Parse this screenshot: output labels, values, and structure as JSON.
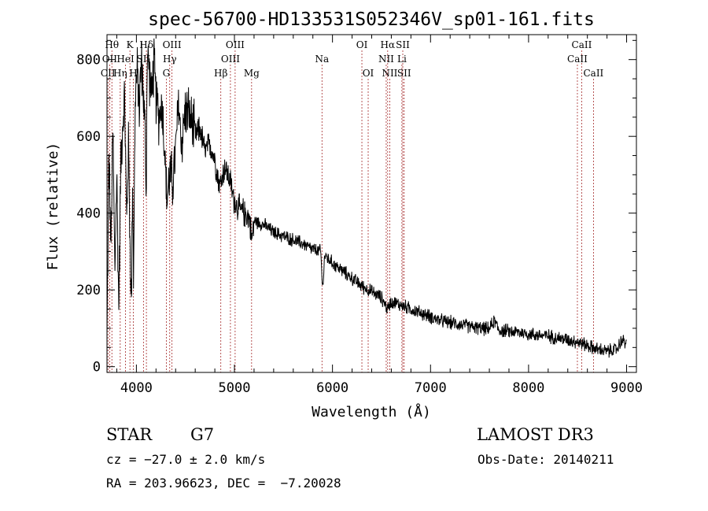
{
  "chart_data": {
    "type": "line",
    "title": "spec-56700-HD133531S052346V_sp01-161.fits",
    "xlabel": "Wavelength (Å)",
    "ylabel": "Flux (relative)",
    "xlim": [
      3700,
      9100
    ],
    "ylim": [
      -15,
      865
    ],
    "x_ticks": [
      4000,
      5000,
      6000,
      7000,
      8000,
      9000
    ],
    "x_tick_labels": [
      "4000",
      "5000",
      "6000",
      "7000",
      "8000",
      "9000"
    ],
    "y_ticks": [
      0,
      200,
      400,
      600,
      800
    ],
    "y_tick_labels": [
      "0",
      "200",
      "400",
      "600",
      "800"
    ],
    "spectrum_anchors": [
      [
        3700,
        70
      ],
      [
        3720,
        560
      ],
      [
        3740,
        300
      ],
      [
        3760,
        620
      ],
      [
        3780,
        250
      ],
      [
        3800,
        500
      ],
      [
        3820,
        150
      ],
      [
        3840,
        520
      ],
      [
        3860,
        640
      ],
      [
        3880,
        700
      ],
      [
        3900,
        380
      ],
      [
        3920,
        580
      ],
      [
        3940,
        250
      ],
      [
        3950,
        150
      ],
      [
        3960,
        520
      ],
      [
        3970,
        240
      ],
      [
        3990,
        720
      ],
      [
        4010,
        760
      ],
      [
        4030,
        680
      ],
      [
        4050,
        800
      ],
      [
        4070,
        720
      ],
      [
        4090,
        600
      ],
      [
        4100,
        430
      ],
      [
        4110,
        820
      ],
      [
        4130,
        780
      ],
      [
        4150,
        700
      ],
      [
        4180,
        790
      ],
      [
        4200,
        700
      ],
      [
        4230,
        650
      ],
      [
        4260,
        690
      ],
      [
        4290,
        560
      ],
      [
        4310,
        430
      ],
      [
        4340,
        500
      ],
      [
        4370,
        480
      ],
      [
        4400,
        560
      ],
      [
        4430,
        690
      ],
      [
        4460,
        580
      ],
      [
        4500,
        670
      ],
      [
        4550,
        650
      ],
      [
        4600,
        600
      ],
      [
        4650,
        620
      ],
      [
        4700,
        560
      ],
      [
        4750,
        580
      ],
      [
        4800,
        540
      ],
      [
        4850,
        470
      ],
      [
        4900,
        520
      ],
      [
        4950,
        490
      ],
      [
        5000,
        430
      ],
      [
        5050,
        410
      ],
      [
        5100,
        400
      ],
      [
        5150,
        390
      ],
      [
        5180,
        330
      ],
      [
        5200,
        380
      ],
      [
        5300,
        370
      ],
      [
        5400,
        350
      ],
      [
        5500,
        340
      ],
      [
        5600,
        330
      ],
      [
        5700,
        320
      ],
      [
        5800,
        305
      ],
      [
        5880,
        300
      ],
      [
        5900,
        200
      ],
      [
        5920,
        290
      ],
      [
        6000,
        270
      ],
      [
        6100,
        250
      ],
      [
        6200,
        230
      ],
      [
        6300,
        210
      ],
      [
        6400,
        195
      ],
      [
        6500,
        180
      ],
      [
        6560,
        150
      ],
      [
        6600,
        170
      ],
      [
        6700,
        160
      ],
      [
        6800,
        150
      ],
      [
        6900,
        140
      ],
      [
        7000,
        130
      ],
      [
        7100,
        120
      ],
      [
        7200,
        115
      ],
      [
        7300,
        110
      ],
      [
        7400,
        105
      ],
      [
        7500,
        100
      ],
      [
        7600,
        98
      ],
      [
        7650,
        120
      ],
      [
        7700,
        95
      ],
      [
        7800,
        92
      ],
      [
        7900,
        90
      ],
      [
        8000,
        85
      ],
      [
        8100,
        82
      ],
      [
        8200,
        80
      ],
      [
        8300,
        75
      ],
      [
        8400,
        70
      ],
      [
        8500,
        65
      ],
      [
        8600,
        55
      ],
      [
        8700,
        45
      ],
      [
        8800,
        40
      ],
      [
        8900,
        45
      ],
      [
        8950,
        70
      ],
      [
        9000,
        60
      ]
    ],
    "emission_lines": [
      {
        "label": "Hθ",
        "wave": 3750,
        "row": 1
      },
      {
        "label": "OII",
        "wave": 3727,
        "row": 2
      },
      {
        "label": "CII",
        "wave": 3710,
        "row": 3
      },
      {
        "label": "Hη",
        "wave": 3835,
        "row": 3
      },
      {
        "label": "HeI",
        "wave": 3889,
        "row": 2
      },
      {
        "label": "K",
        "wave": 3934,
        "row": 1
      },
      {
        "label": "H",
        "wave": 3969,
        "row": 3
      },
      {
        "label": "SII",
        "wave": 4072,
        "row": 2
      },
      {
        "label": "Hδ",
        "wave": 4102,
        "row": 1
      },
      {
        "label": "OIII",
        "wave": 4363,
        "row": 1
      },
      {
        "label": "Hγ",
        "wave": 4340,
        "row": 2
      },
      {
        "label": "G",
        "wave": 4305,
        "row": 3
      },
      {
        "label": "Hβ",
        "wave": 4861,
        "row": 3
      },
      {
        "label": "OIII",
        "wave": 5007,
        "row": 1
      },
      {
        "label": "OIII",
        "wave": 4959,
        "row": 2
      },
      {
        "label": "Mg",
        "wave": 5175,
        "row": 3
      },
      {
        "label": "Na",
        "wave": 5893,
        "row": 2
      },
      {
        "label": "OI",
        "wave": 6300,
        "row": 1
      },
      {
        "label": "OI",
        "wave": 6364,
        "row": 3
      },
      {
        "label": "Hα",
        "wave": 6563,
        "row": 1
      },
      {
        "label": "NII",
        "wave": 6548,
        "row": 2
      },
      {
        "label": "NII",
        "wave": 6584,
        "row": 3
      },
      {
        "label": "SII",
        "wave": 6717,
        "row": 1
      },
      {
        "label": "Li",
        "wave": 6708,
        "row": 2
      },
      {
        "label": "SII",
        "wave": 6731,
        "row": 3
      },
      {
        "label": "CaII",
        "wave": 8542,
        "row": 1
      },
      {
        "label": "CaII",
        "wave": 8498,
        "row": 2
      },
      {
        "label": "CaII",
        "wave": 8662,
        "row": 3
      }
    ],
    "colors": {
      "line": "#000000",
      "marker": "#a52a2a",
      "axis": "#000000"
    }
  },
  "info": {
    "class": "STAR",
    "subclass": "G7",
    "survey": "LAMOST DR3",
    "redshift": "cz = −27.0 ± 2.0 km/s",
    "obs_date": "Obs-Date: 20140211",
    "coords": "RA = 203.96623, DEC =  −7.20028"
  }
}
